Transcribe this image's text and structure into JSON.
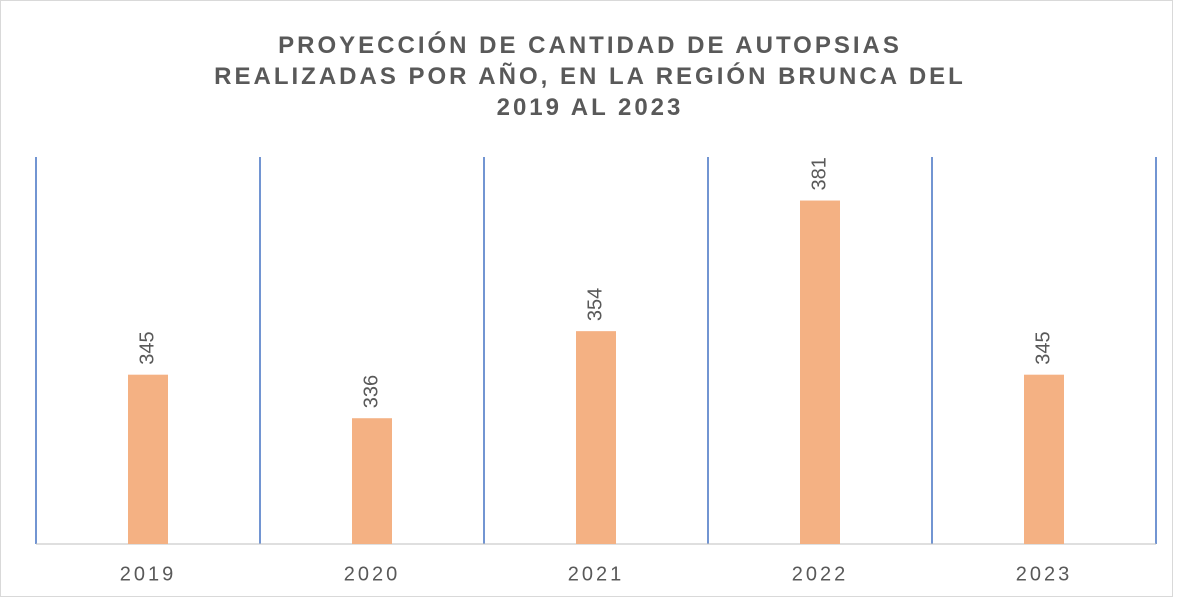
{
  "chart_data": {
    "type": "bar",
    "title": "PROYECCIÓN DE CANTIDAD DE AUTOPSIAS REALIZADAS POR AÑO, EN LA REGIÓN BRUNCA DEL 2019 AL 2023",
    "categories": [
      "2019",
      "2020",
      "2021",
      "2022",
      "2023"
    ],
    "values": [
      345,
      336,
      354,
      381,
      345
    ],
    "color": "#f4b183",
    "ylim": [
      310,
      390
    ],
    "category_grid": true,
    "grid_color": "#4472c4"
  }
}
